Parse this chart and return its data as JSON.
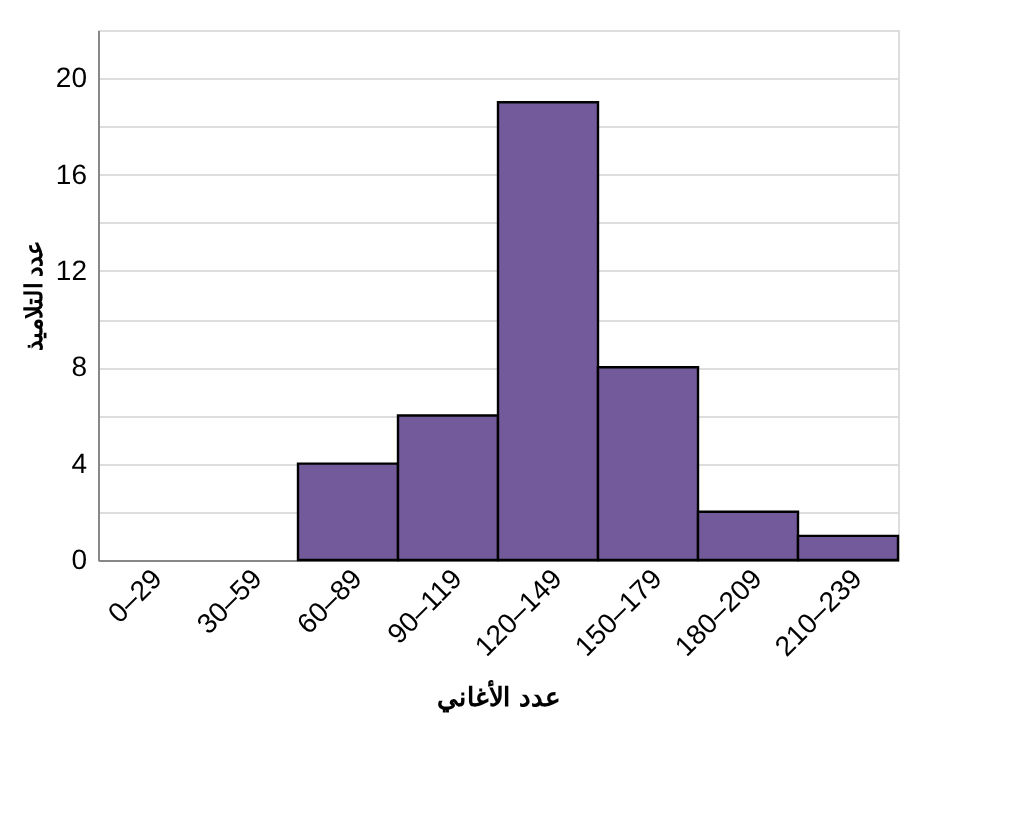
{
  "chart_data": {
    "type": "bar",
    "xlabel": "عدد الأغاني",
    "ylabel": "عدد التلاميذ",
    "categories": [
      "0–29",
      "30–59",
      "60–89",
      "90–119",
      "120–149",
      "150–179",
      "180–209",
      "210–239"
    ],
    "values": [
      0,
      0,
      4,
      6,
      19,
      8,
      2,
      1
    ],
    "color": "#735a9b",
    "ylim": [
      0,
      22
    ],
    "yticks": [
      0,
      {
        "value": 2,
        "label": null
      },
      4,
      {
        "value": 6,
        "label": null
      },
      8,
      {
        "value": 10,
        "label": null
      },
      12,
      {
        "value": 14,
        "label": null
      },
      16,
      {
        "value": 18,
        "label": null
      },
      20
    ],
    "grid": "y"
  }
}
